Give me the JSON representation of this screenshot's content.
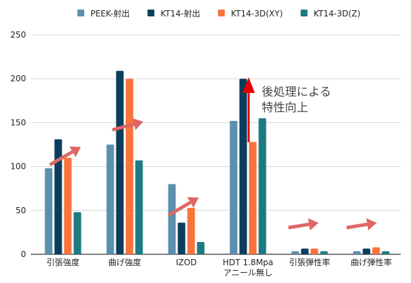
{
  "chart_data": {
    "type": "bar",
    "title": "",
    "xlabel": "",
    "ylabel": "",
    "ylim": [
      0,
      250
    ],
    "yticks": [
      0,
      50,
      100,
      150,
      200,
      250
    ],
    "grid": true,
    "legend_position": "top",
    "categories": [
      "引張強度",
      "曲げ強度",
      "IZOD",
      "HDT 1.8Mpa\nアニール無し",
      "引張弾性率",
      "曲げ弾性率"
    ],
    "series": [
      {
        "name": "PEEK-射出",
        "color": "#5b8fad",
        "values": [
          98,
          125,
          80,
          152,
          3.5,
          3.5
        ]
      },
      {
        "name": "KT14-射出",
        "color": "#0b3d5c",
        "values": [
          131,
          209,
          36,
          200,
          6.5,
          6.5
        ]
      },
      {
        "name": "KT14-3D(XY)",
        "color": "#f9733a",
        "values": [
          110,
          200,
          53,
          128,
          6.5,
          8
        ]
      },
      {
        "name": "KT14-3D(Z)",
        "color": "#1e7a82",
        "values": [
          48,
          107,
          14,
          155,
          3.5,
          3.5
        ]
      }
    ],
    "annotations": [
      {
        "text": "後処理による\n特性向上",
        "color": "#444444",
        "arrow_color": "#e60000"
      }
    ],
    "trend_arrow_color": "#e06666"
  }
}
